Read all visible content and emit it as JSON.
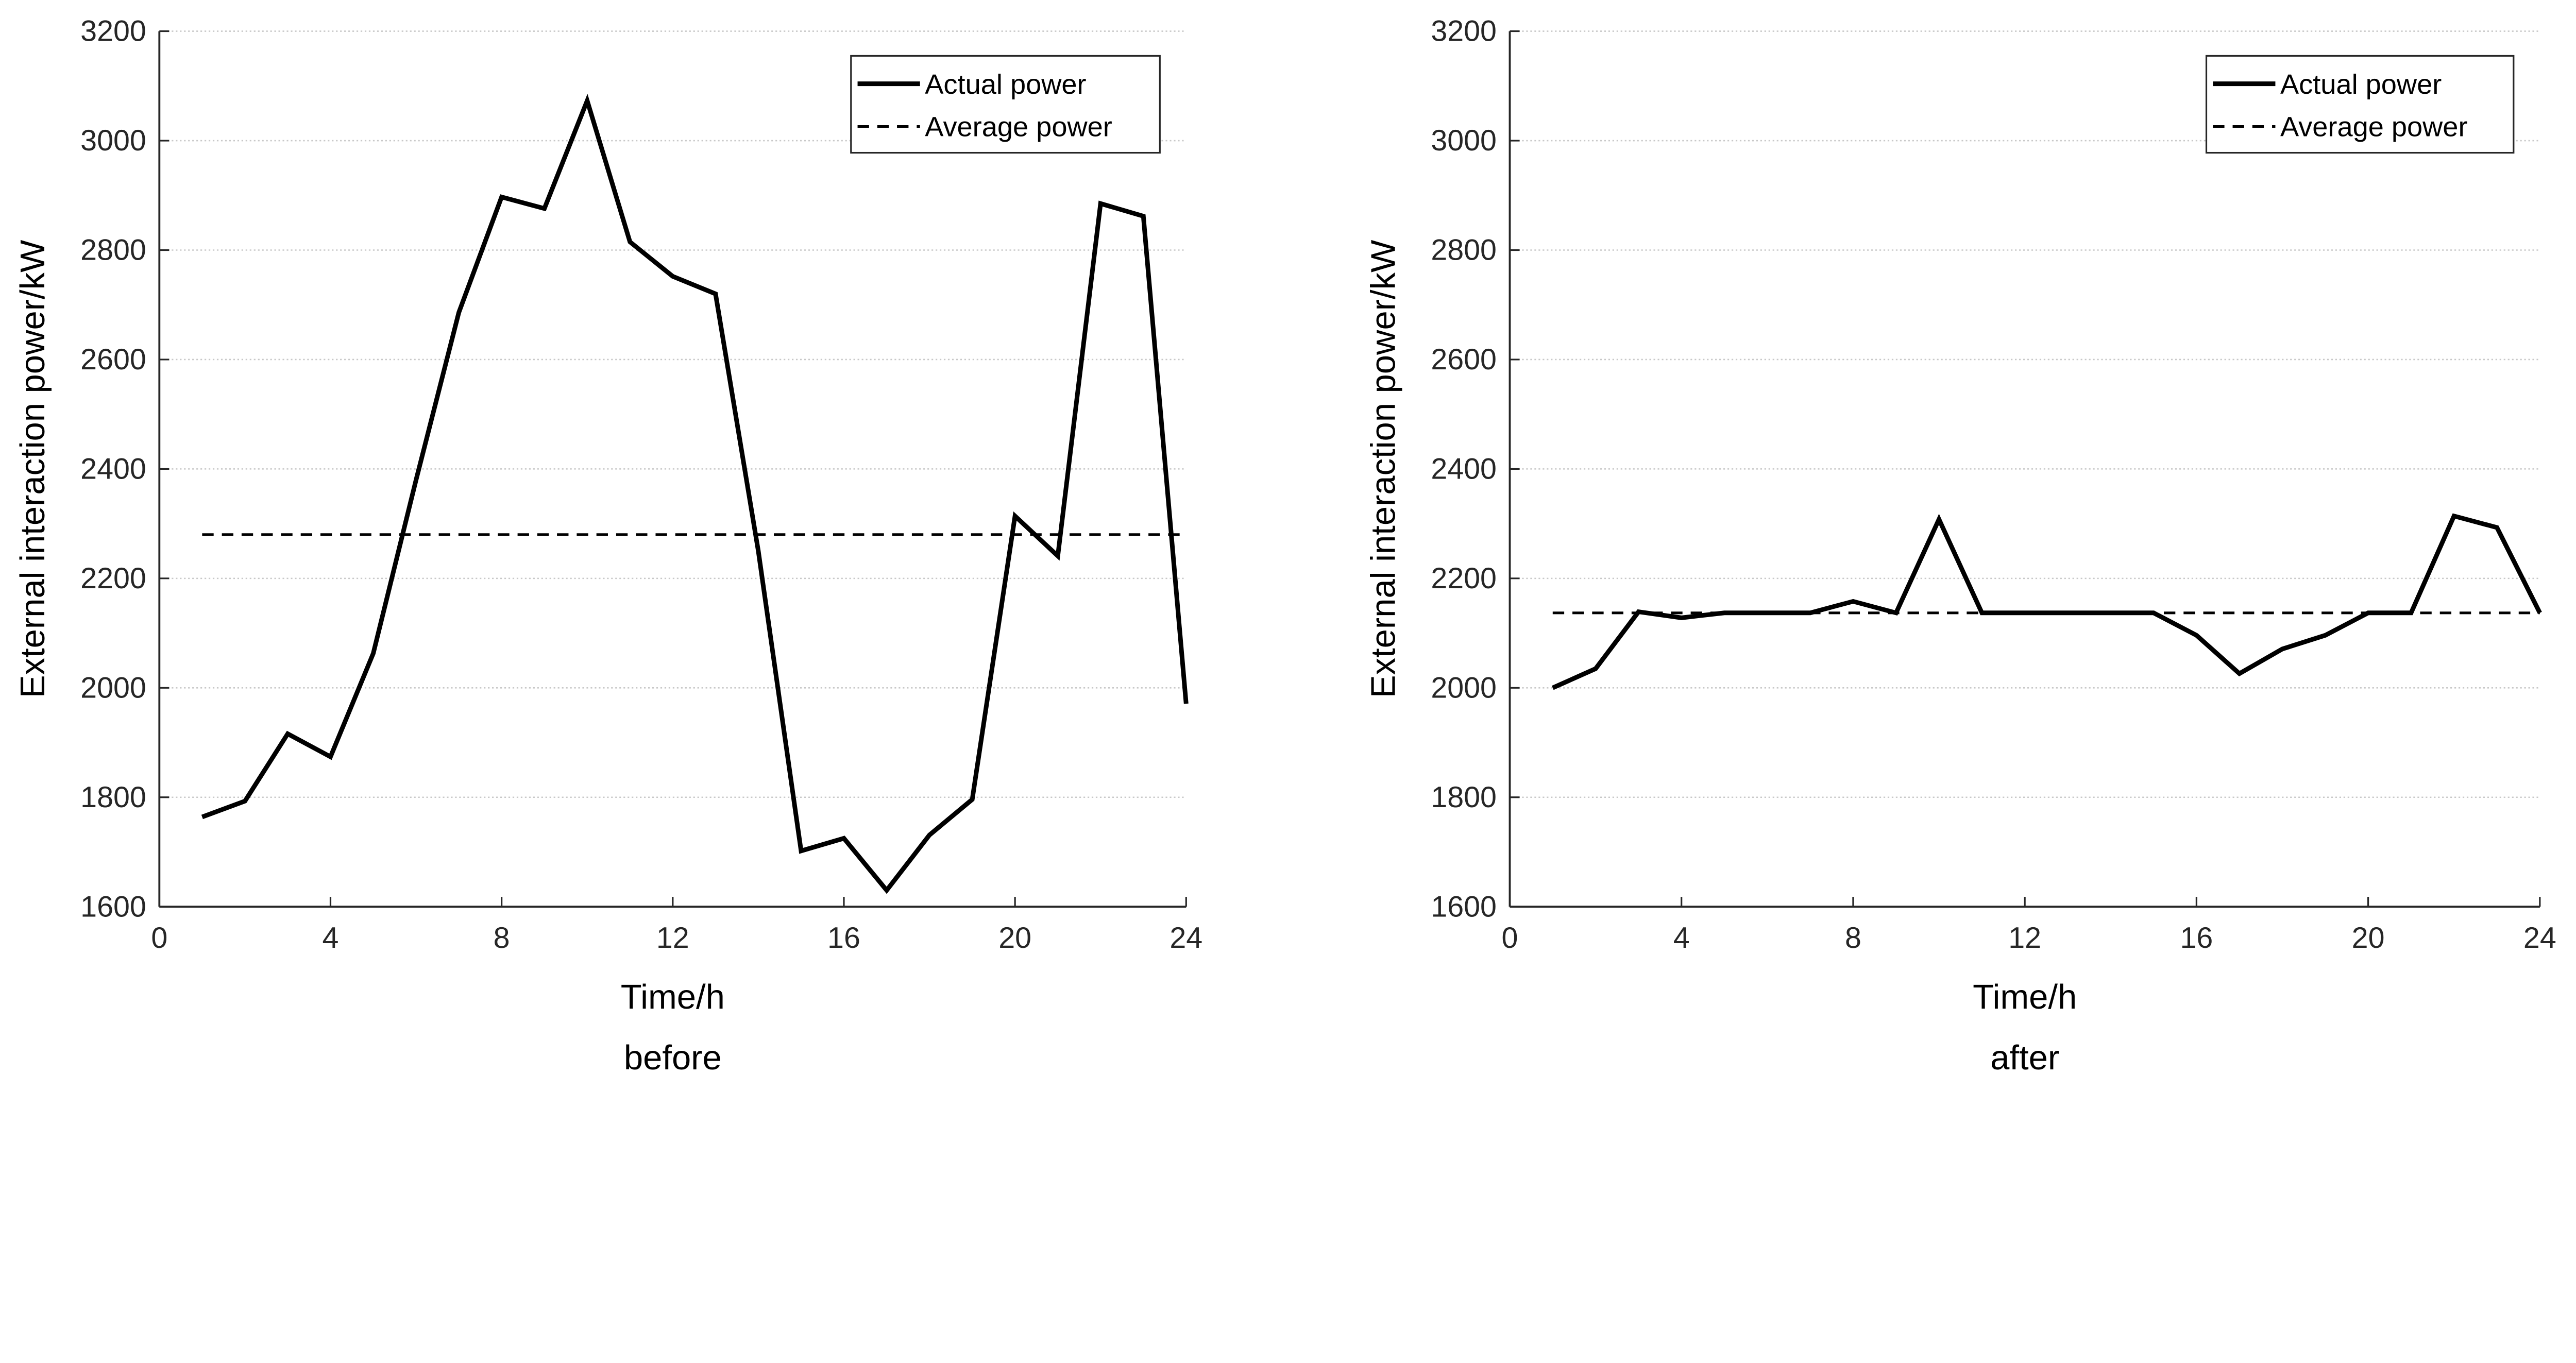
{
  "chart_data": [
    {
      "type": "line",
      "subtitle": "before",
      "xlabel": "Time/h",
      "ylabel": "External interaction power/kW",
      "xlim": [
        0,
        24
      ],
      "ylim": [
        1600,
        3200
      ],
      "xticks": [
        0,
        4,
        8,
        12,
        16,
        20,
        24
      ],
      "yticks": [
        1600,
        1800,
        2000,
        2200,
        2400,
        2600,
        2800,
        3000,
        3200
      ],
      "grid": "horizontal dotted",
      "legend_position": "top-right",
      "x": [
        1,
        2,
        3,
        4,
        5,
        6,
        7,
        8,
        9,
        10,
        11,
        12,
        13,
        14,
        15,
        16,
        17,
        18,
        19,
        20,
        21,
        22,
        23,
        24
      ],
      "series": [
        {
          "name": "Actual power",
          "style": "solid",
          "values": [
            1764,
            1793,
            1916,
            1874,
            2063,
            2380,
            2686,
            2897,
            2876,
            3073,
            2815,
            2752,
            2720,
            2250,
            1702,
            1725,
            1630,
            1731,
            1796,
            2314,
            2241,
            2885,
            2862,
            1971
          ]
        },
        {
          "name": "Average power",
          "style": "dashed",
          "values": [
            2280,
            2280,
            2280,
            2280,
            2280,
            2280,
            2280,
            2280,
            2280,
            2280,
            2280,
            2280,
            2280,
            2280,
            2280,
            2280,
            2280,
            2280,
            2280,
            2280,
            2280,
            2280,
            2280,
            2280
          ]
        }
      ]
    },
    {
      "type": "line",
      "subtitle": "after",
      "xlabel": "Time/h",
      "ylabel": "External interaction power/kW",
      "xlim": [
        0,
        24
      ],
      "ylim": [
        1600,
        3200
      ],
      "xticks": [
        0,
        4,
        8,
        12,
        16,
        20,
        24
      ],
      "yticks": [
        1600,
        1800,
        2000,
        2200,
        2400,
        2600,
        2800,
        3000,
        3200
      ],
      "grid": "horizontal dotted",
      "legend_position": "top-right",
      "x": [
        1,
        2,
        3,
        4,
        5,
        6,
        7,
        8,
        9,
        10,
        11,
        12,
        13,
        14,
        15,
        16,
        17,
        18,
        19,
        20,
        21,
        22,
        23,
        24
      ],
      "series": [
        {
          "name": "Actual power",
          "style": "solid",
          "values": [
            2000,
            2035,
            2139,
            2128,
            2137,
            2137,
            2137,
            2158,
            2137,
            2308,
            2137,
            2137,
            2137,
            2137,
            2137,
            2096,
            2026,
            2071,
            2096,
            2137,
            2137,
            2314,
            2293,
            2137
          ]
        },
        {
          "name": "Average power",
          "style": "dashed",
          "values": [
            2137,
            2137,
            2137,
            2137,
            2137,
            2137,
            2137,
            2137,
            2137,
            2137,
            2137,
            2137,
            2137,
            2137,
            2137,
            2137,
            2137,
            2137,
            2137,
            2137,
            2137,
            2137,
            2137,
            2137
          ]
        }
      ]
    }
  ]
}
